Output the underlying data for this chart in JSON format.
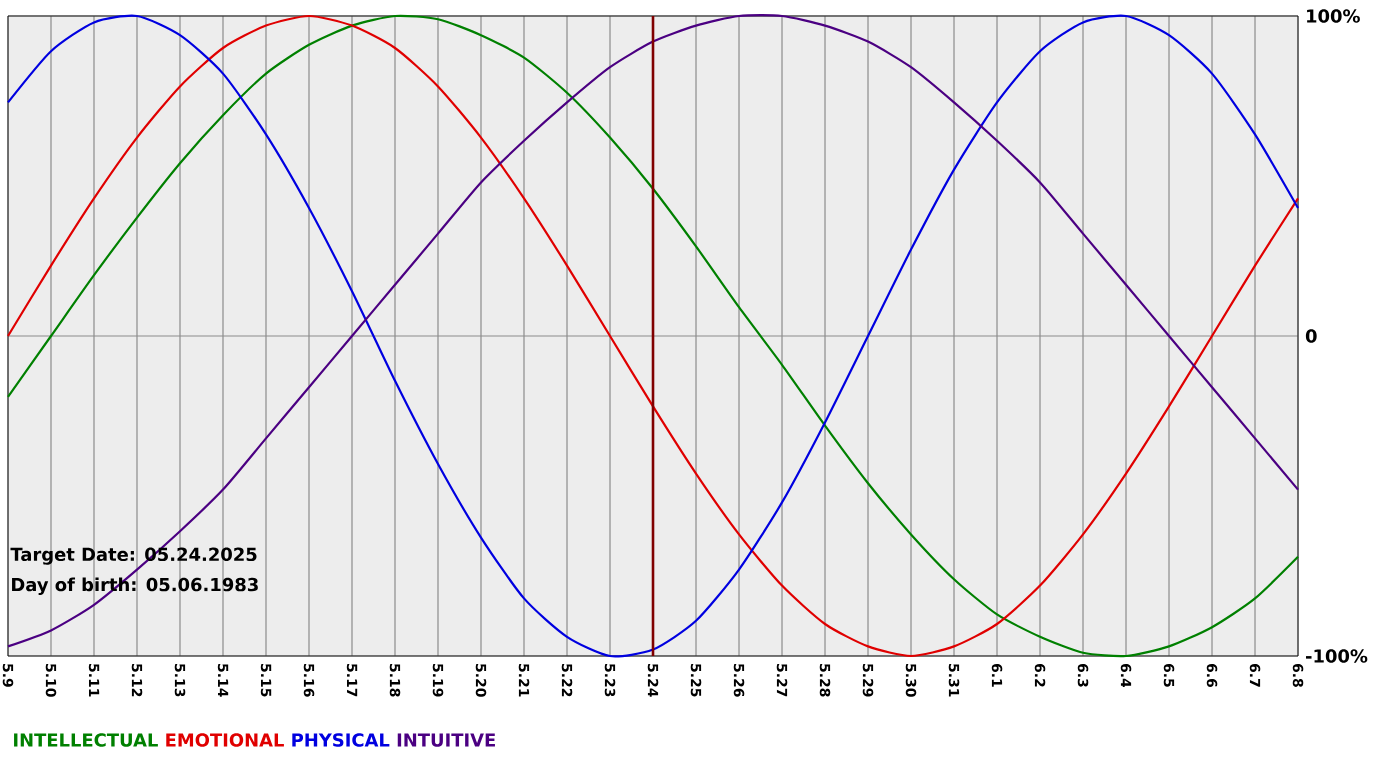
{
  "chart_data": {
    "type": "line",
    "categories": [
      "5.9",
      "5.10",
      "5.11",
      "5.12",
      "5.13",
      "5.14",
      "5.15",
      "5.16",
      "5.17",
      "5.18",
      "5.19",
      "5.20",
      "5.21",
      "5.22",
      "5.23",
      "5.24",
      "5.25",
      "5.26",
      "5.27",
      "5.28",
      "5.29",
      "5.30",
      "5.31",
      "6.1",
      "6.2",
      "6.3",
      "6.4",
      "6.5",
      "6.6",
      "6.7",
      "6.8"
    ],
    "series": [
      {
        "name": "INTELLECTUAL",
        "color": "#008000",
        "values": [
          -19,
          0,
          19,
          37,
          54,
          69,
          82,
          91,
          97,
          100,
          99,
          94,
          87,
          76,
          62,
          46,
          28,
          9,
          -9,
          -28,
          -46,
          -62,
          -76,
          -87,
          -94,
          -99,
          -100,
          -97,
          -91,
          -82,
          -69
        ]
      },
      {
        "name": "EMOTIONAL",
        "color": "#e00000",
        "values": [
          0,
          22,
          43,
          62,
          78,
          90,
          97,
          100,
          97,
          90,
          78,
          62,
          43,
          22,
          0,
          -22,
          -43,
          -62,
          -78,
          -90,
          -97,
          -100,
          -97,
          -90,
          -78,
          -62,
          -43,
          -22,
          0,
          22,
          43
        ]
      },
      {
        "name": "PHYSICAL",
        "color": "#0000e0",
        "values": [
          73,
          89,
          98,
          100,
          94,
          82,
          63,
          40,
          14,
          -14,
          -40,
          -63,
          -82,
          -94,
          -100,
          -98,
          -89,
          -73,
          -52,
          -27,
          0,
          27,
          52,
          73,
          89,
          98,
          100,
          94,
          82,
          63,
          40
        ]
      },
      {
        "name": "INTUITIVE",
        "color": "#4b0082",
        "values": [
          -97,
          -92,
          -84,
          -73,
          -61,
          -48,
          -32,
          -16,
          0,
          16,
          32,
          48,
          61,
          73,
          84,
          92,
          97,
          100,
          100,
          97,
          92,
          84,
          73,
          61,
          48,
          32,
          16,
          0,
          -16,
          -32,
          -48
        ]
      }
    ],
    "ylim": [
      -100,
      100
    ],
    "yticks": [
      {
        "value": 100,
        "label": "100%"
      },
      0,
      {
        "value": -100,
        "label": "-100%"
      }
    ],
    "grid": true,
    "legend": "bottom left",
    "marker": "none",
    "line_style": "solid",
    "ref_lines": [
      {
        "axis": "x",
        "value": "5.24",
        "color": "#800000"
      }
    ],
    "annotations": [
      "Target Date: 05.24.2025",
      "Day of birth: 05.06.1983"
    ]
  }
}
